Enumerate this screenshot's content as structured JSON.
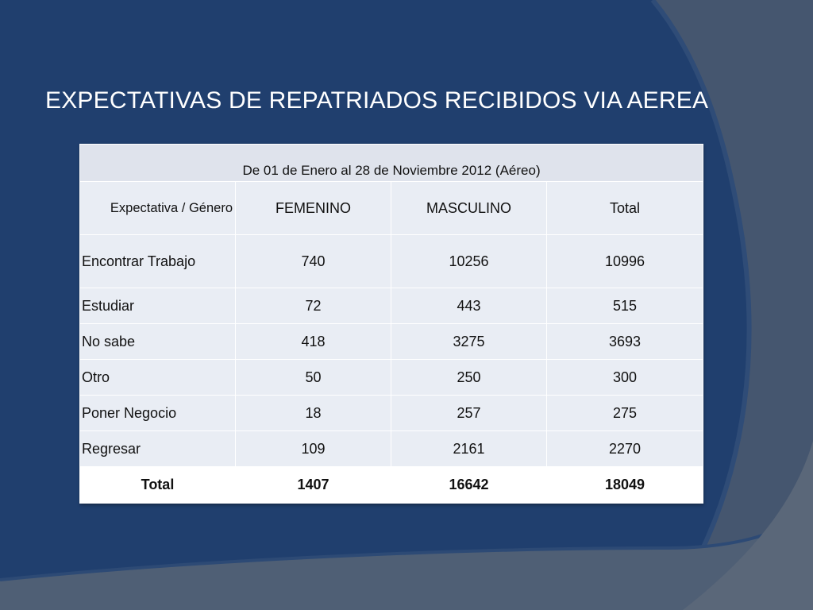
{
  "slide": {
    "title": "EXPECTATIVAS DE REPATRIADOS RECIBIDOS VIA  AEREA"
  },
  "colors": {
    "background_blue": "#203f6e",
    "swoosh_gray": "#44556e",
    "table_cell": "#e9edf4",
    "total_row": "#ffffff"
  },
  "table": {
    "period": "De  01 de Enero al  28 de Noviembre 2012 (Aéreo)",
    "headers": [
      "Expectativa / Género",
      "FEMENINO",
      "MASCULINO",
      "Total"
    ],
    "rows": [
      [
        "Encontrar Trabajo",
        "740",
        "10256",
        "10996"
      ],
      [
        "Estudiar",
        "72",
        "443",
        "515"
      ],
      [
        "No sabe",
        "418",
        "3275",
        "3693"
      ],
      [
        "Otro",
        "50",
        "250",
        "300"
      ],
      [
        "Poner Negocio",
        "18",
        "257",
        "275"
      ],
      [
        "Regresar",
        "109",
        "2161",
        "2270"
      ]
    ],
    "total": [
      "Total",
      "1407",
      "16642",
      "18049"
    ]
  }
}
